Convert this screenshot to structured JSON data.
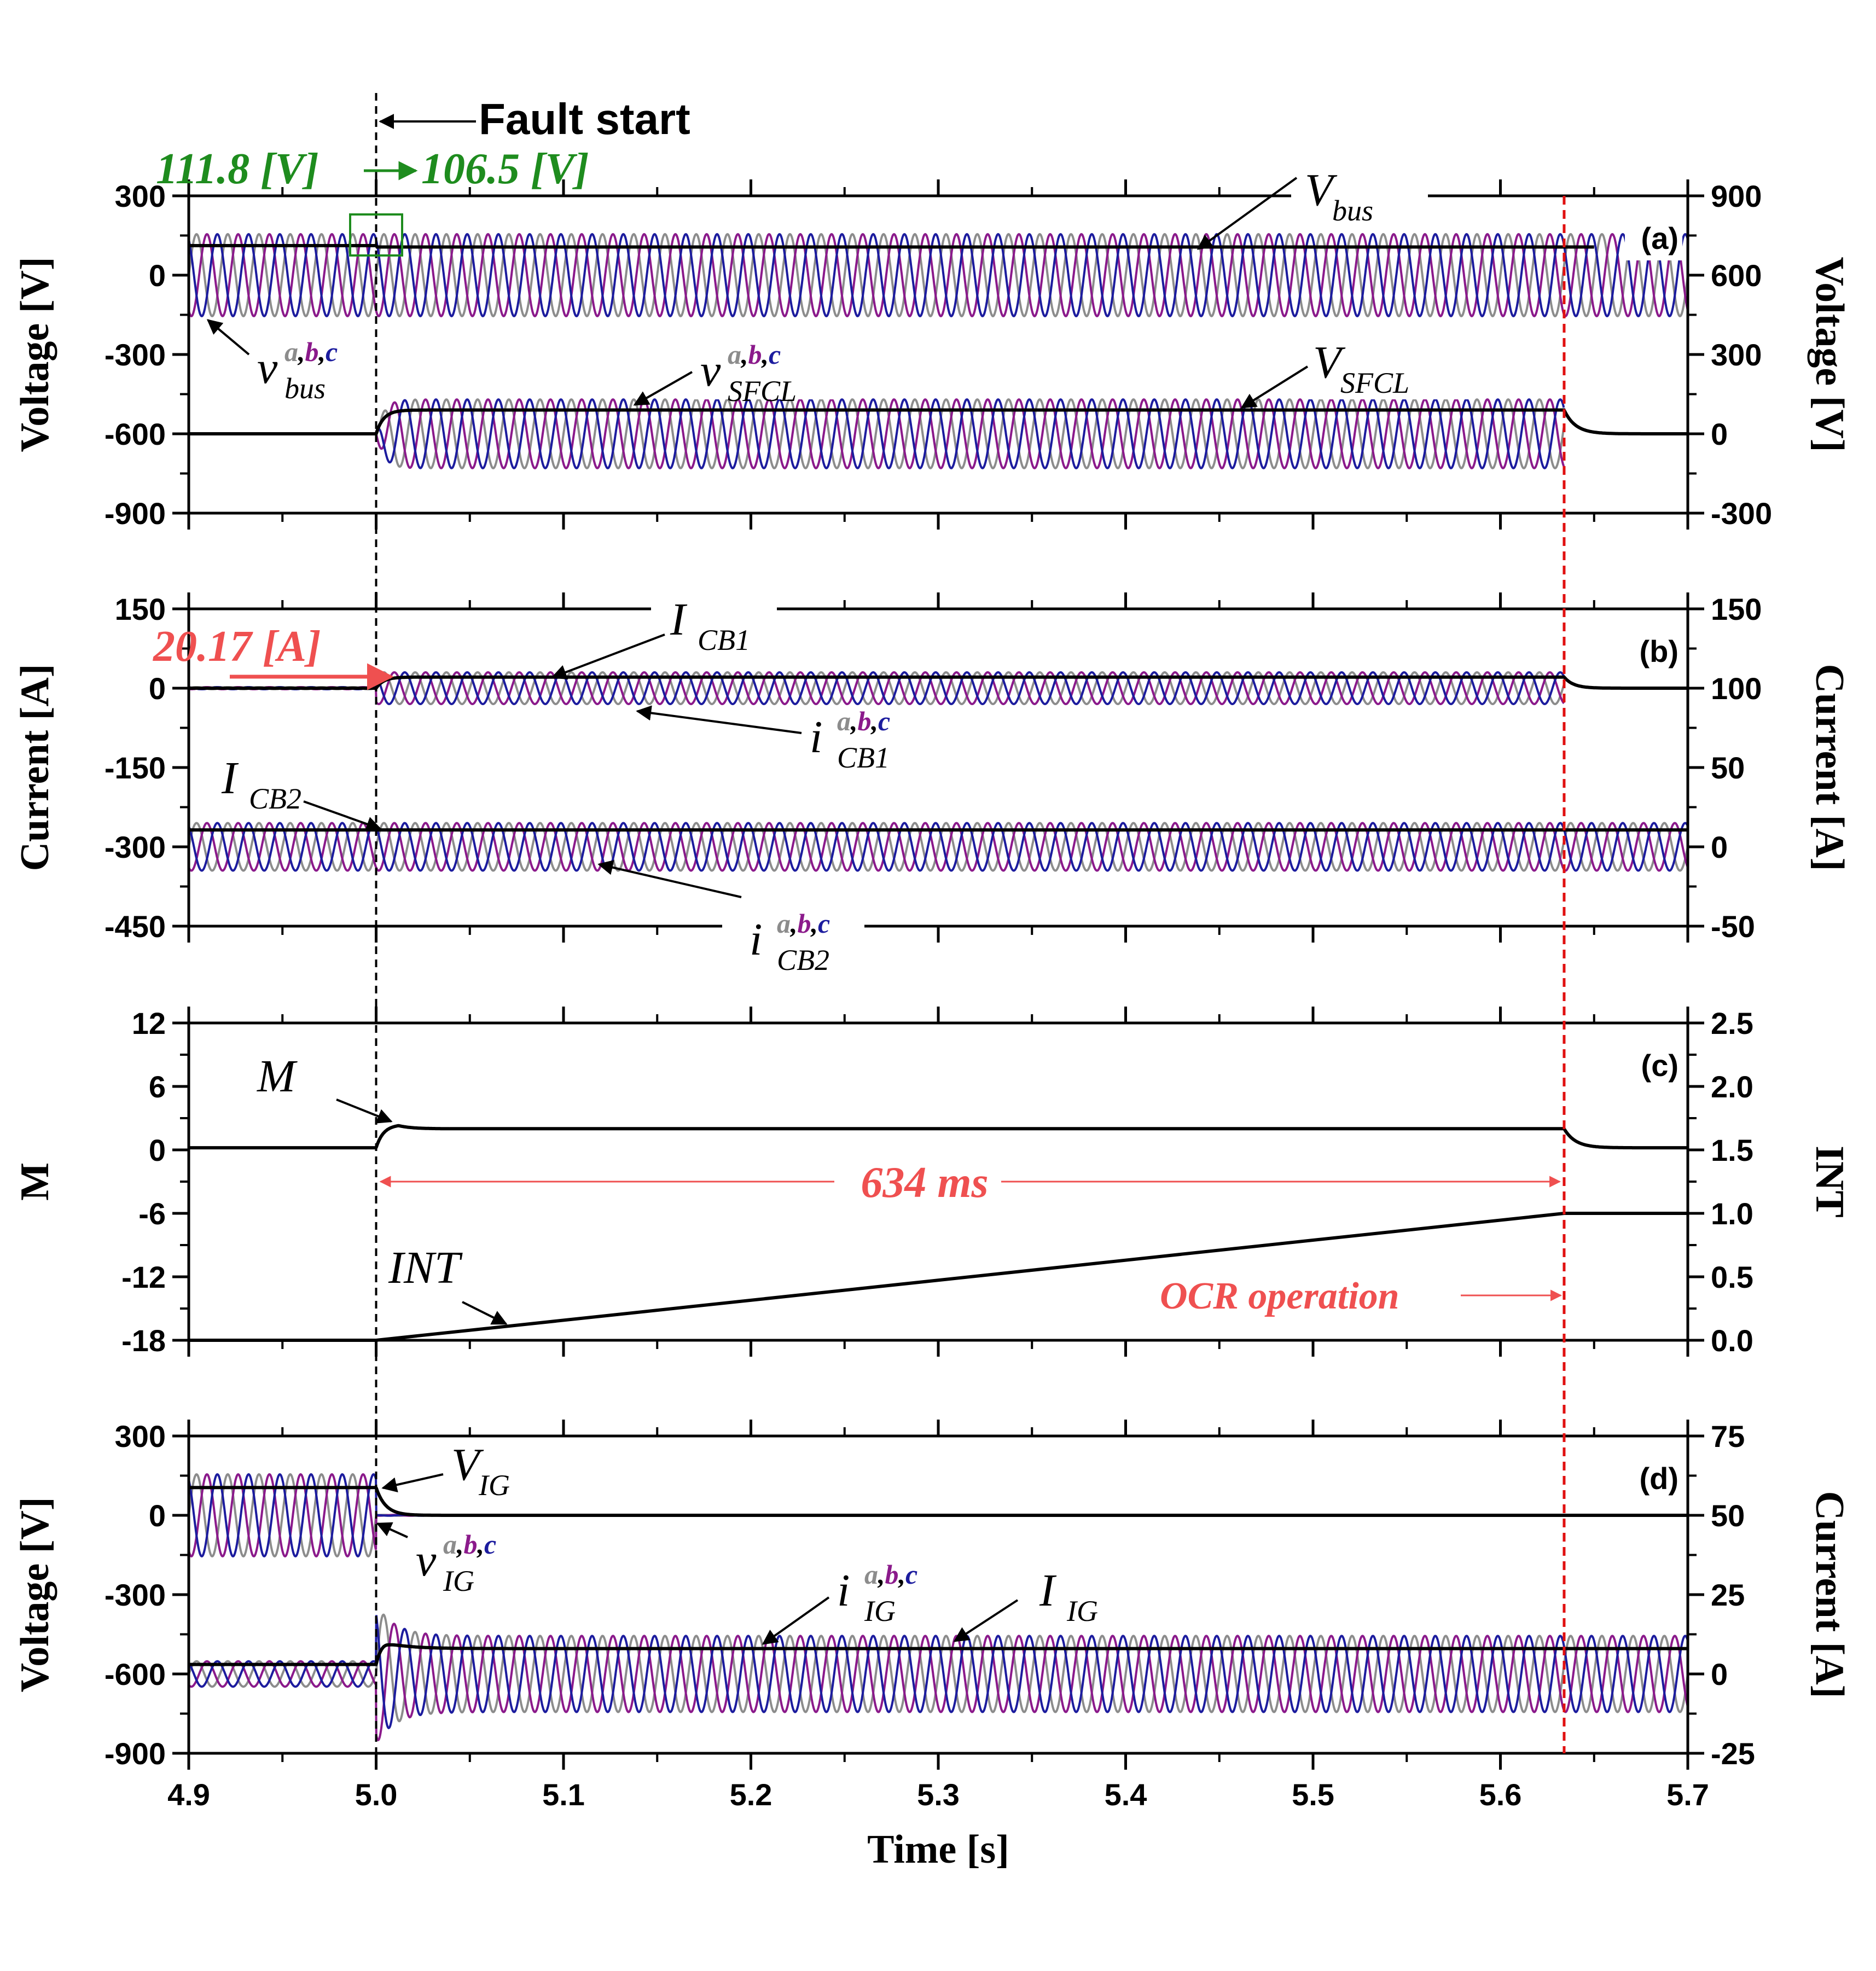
{
  "chart_data": [
    {
      "panel_label": "(a)",
      "type": "line",
      "xlim": [
        4.9,
        5.7
      ],
      "ylabel_left": "Voltage [V]",
      "ylim_left": [
        -900,
        300
      ],
      "yticks_left": [
        "300",
        "0",
        "-300",
        "-600",
        "-900"
      ],
      "ylabel_right": "Voltage [V]",
      "ylim_right": [
        -300,
        900
      ],
      "yticks_right": [
        "900",
        "600",
        "300",
        "0",
        "-300"
      ],
      "annotation_top": "111.8 [V] → 106.5 [V]",
      "annotation_top_a": "111.8 [V]",
      "annotation_top_b": "106.5 [V]",
      "series": [
        {
          "name": "v_bus a,b,c",
          "axis": "left",
          "form": "3-phase sinusoid",
          "amplitude": 155,
          "offset": 0,
          "from": 4.9,
          "to": 5.7
        },
        {
          "name": "V_bus",
          "axis": "left",
          "form": "rms",
          "before": 111.8,
          "after": 106.5,
          "to": 5.65
        },
        {
          "name": "v_SFCL a,b,c",
          "axis": "right",
          "form": "3-phase sinusoid",
          "amplitude": 130,
          "offset": 0,
          "from": 5.0,
          "to": 5.634
        },
        {
          "name": "V_SFCL",
          "axis": "right",
          "form": "rms",
          "before": 0,
          "after": 90,
          "from": 5.0,
          "to": 5.634
        }
      ]
    },
    {
      "panel_label": "(b)",
      "type": "line",
      "xlim": [
        4.9,
        5.7
      ],
      "ylabel_left": "Current [A]",
      "ylim_left": [
        -450,
        150
      ],
      "yticks_left": [
        "150",
        "0",
        "-150",
        "-300",
        "-450"
      ],
      "ylabel_right": "Current [A]",
      "ylim_right": [
        -50,
        150
      ],
      "yticks_right": [
        "150",
        "100",
        "50",
        "0",
        "-50"
      ],
      "annotation_left": "20.17 [A]",
      "series": [
        {
          "name": "i_CB1 a,b,c",
          "axis": "left",
          "form": "3-phase sinusoid",
          "amplitude": 30,
          "offset": 0,
          "from": 5.0,
          "to": 5.634
        },
        {
          "name": "I_CB1",
          "axis": "right",
          "form": "rms",
          "before": 100,
          "after": 107,
          "from": 5.0,
          "to": 5.65
        },
        {
          "name": "i_CB2 a,b,c",
          "axis": "right",
          "form": "3-phase sinusoid",
          "amplitude": 15,
          "offset": 0,
          "from": 4.9,
          "to": 5.7
        },
        {
          "name": "I_CB2",
          "axis": "left",
          "form": "rms",
          "value": -268
        }
      ]
    },
    {
      "panel_label": "(c)",
      "type": "line",
      "xlim": [
        4.9,
        5.7
      ],
      "ylabel_left": "M",
      "ylim_left": [
        -18,
        12
      ],
      "yticks_left": [
        "12",
        "6",
        "0",
        "-6",
        "-12",
        "-18"
      ],
      "ylabel_right": "INT",
      "ylim_right": [
        0.0,
        2.5
      ],
      "yticks_right": [
        "2.5",
        "2.0",
        "1.5",
        "1.0",
        "0.5",
        "0.0"
      ],
      "annotation_duration": "634 ms",
      "annotation_event": "OCR operation",
      "series": [
        {
          "name": "M",
          "axis": "left",
          "before": 0.2,
          "peak": 2.4,
          "after": 2.0,
          "from": 5.0,
          "to": 5.634
        },
        {
          "name": "INT",
          "axis": "right",
          "points": [
            [
              4.9,
              0.0
            ],
            [
              5.0,
              0.0
            ],
            [
              5.634,
              1.0
            ],
            [
              5.7,
              1.0
            ]
          ]
        }
      ]
    },
    {
      "panel_label": "(d)",
      "type": "line",
      "xlim": [
        4.9,
        5.7
      ],
      "xticks": [
        "4.9",
        "5.0",
        "5.1",
        "5.2",
        "5.3",
        "5.4",
        "5.5",
        "5.6",
        "5.7"
      ],
      "xlabel": "Time [s]",
      "ylabel_left": "Voltage [V]",
      "ylim_left": [
        -900,
        300
      ],
      "yticks_left": [
        "300",
        "0",
        "-300",
        "-600",
        "-900"
      ],
      "ylabel_right": "Current [A]",
      "ylim_right": [
        -25,
        75
      ],
      "yticks_right": [
        "75",
        "50",
        "25",
        "0",
        "-25"
      ],
      "series": [
        {
          "name": "v_IG a,b,c",
          "axis": "left",
          "form": "3-phase sinusoid",
          "amplitude": 155,
          "offset": 0,
          "from": 4.9,
          "to": 5.0
        },
        {
          "name": "V_IG",
          "axis": "left",
          "form": "rms",
          "before": 105,
          "after": 0,
          "from": 4.9,
          "to": 5.7
        },
        {
          "name": "i_IG a,b,c",
          "axis": "right",
          "form": "3-phase sinusoid",
          "amplitude_before": 4,
          "amplitude_after": 12,
          "offset": 0,
          "from": 4.9,
          "to": 5.7
        },
        {
          "name": "I_IG",
          "axis": "right",
          "form": "rms",
          "before": 3,
          "after": 8,
          "from": 4.9,
          "to": 5.7
        }
      ]
    }
  ],
  "markers": {
    "fault_start_time": 5.0,
    "fault_start_label": "Fault start",
    "ocr_time": 5.634
  },
  "labels": {
    "v_bus": {
      "main": "v",
      "sup": [
        "a",
        "b",
        "c"
      ],
      "sub": "bus"
    },
    "V_bus": {
      "main": "V",
      "sub": "bus"
    },
    "v_SFCL": {
      "main": "v",
      "sup": [
        "a",
        "b",
        "c"
      ],
      "sub": "SFCL"
    },
    "V_SFCL": {
      "main": "V",
      "sub": "SFCL"
    },
    "I_CB1": {
      "main": "I",
      "sub": "CB1"
    },
    "i_CB1": {
      "main": "i",
      "sup": [
        "a",
        "b",
        "c"
      ],
      "sub": "CB1"
    },
    "I_CB2": {
      "main": "I",
      "sub": "CB2"
    },
    "i_CB2": {
      "main": "i",
      "sup": [
        "a",
        "b",
        "c"
      ],
      "sub": "CB2"
    },
    "M": {
      "main": "M"
    },
    "INT": {
      "main": "INT"
    },
    "V_IG": {
      "main": "V",
      "sub": "IG"
    },
    "v_IG": {
      "main": "v",
      "sup": [
        "a",
        "b",
        "c"
      ],
      "sub": "IG"
    },
    "i_IG": {
      "main": "i",
      "sup": [
        "a",
        "b",
        "c"
      ],
      "sub": "IG"
    },
    "I_IG": {
      "main": "I",
      "sub": "IG"
    }
  },
  "colors": {
    "phase_a": "#8c8c8c",
    "phase_b": "#8b1a8b",
    "phase_c": "#1c1c9e",
    "rms": "#000000",
    "green_annotation": "#1e8c1e",
    "red_annotation": "#ef5050",
    "ocr_line": "#e01010"
  }
}
